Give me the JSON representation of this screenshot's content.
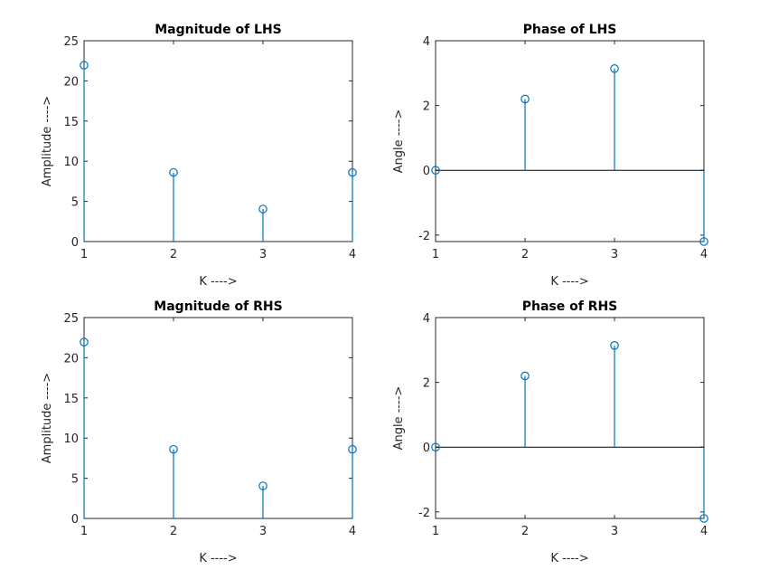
{
  "figure_colors": {
    "stem": "#0072BD",
    "axes": "#262626",
    "background": "#ffffff"
  },
  "chart_data": [
    {
      "type": "stem",
      "title": "Magnitude of LHS",
      "xlabel": "K ---->",
      "ylabel": "Amplitude ---->",
      "x": [
        1,
        2,
        3,
        4
      ],
      "y": [
        21.95,
        8.6,
        4.05,
        8.6
      ],
      "xlim": [
        1,
        4
      ],
      "ylim": [
        0,
        25
      ],
      "xticks": [
        1,
        2,
        3,
        4
      ],
      "yticks": [
        0,
        5,
        10,
        15,
        20,
        25
      ],
      "grid": false,
      "zero_line": false
    },
    {
      "type": "stem",
      "title": "Phase of LHS",
      "xlabel": "K ---->",
      "ylabel": "Angle ---->",
      "x": [
        1,
        2,
        3,
        4
      ],
      "y": [
        0,
        2.2,
        3.14,
        -2.2
      ],
      "xlim": [
        1,
        4
      ],
      "ylim": [
        -2.2,
        4
      ],
      "xticks": [
        1,
        2,
        3,
        4
      ],
      "yticks": [
        -2,
        0,
        2,
        4
      ],
      "grid": false,
      "zero_line": true
    },
    {
      "type": "stem",
      "title": "Magnitude of RHS",
      "xlabel": "K ---->",
      "ylabel": "Amplitude ---->",
      "x": [
        1,
        2,
        3,
        4
      ],
      "y": [
        21.95,
        8.6,
        4.05,
        8.6
      ],
      "xlim": [
        1,
        4
      ],
      "ylim": [
        0,
        25
      ],
      "xticks": [
        1,
        2,
        3,
        4
      ],
      "yticks": [
        0,
        5,
        10,
        15,
        20,
        25
      ],
      "grid": false,
      "zero_line": false
    },
    {
      "type": "stem",
      "title": "Phase of RHS",
      "xlabel": "K ---->",
      "ylabel": "Angle ---->",
      "x": [
        1,
        2,
        3,
        4
      ],
      "y": [
        0,
        2.2,
        3.14,
        -2.2
      ],
      "xlim": [
        1,
        4
      ],
      "ylim": [
        -2.2,
        4
      ],
      "xticks": [
        1,
        2,
        3,
        4
      ],
      "yticks": [
        -2,
        0,
        2,
        4
      ],
      "grid": false,
      "zero_line": true
    }
  ]
}
